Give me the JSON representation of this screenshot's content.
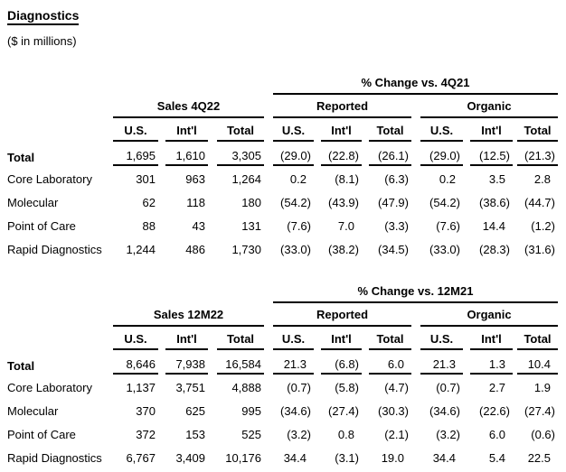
{
  "page": {
    "title": "Diagnostics",
    "subtitle": "($ in millions)"
  },
  "tables": [
    {
      "sales_header": "Sales 4Q22",
      "change_header": "% Change vs. 4Q21",
      "reported_header": "Reported",
      "organic_header": "Organic",
      "col_headers": [
        "U.S.",
        "Int'l",
        "Total",
        "U.S.",
        "Int'l",
        "Total",
        "U.S.",
        "Int'l",
        "Total"
      ],
      "rows": [
        {
          "label": "Total",
          "values": [
            "1,695",
            "1,610",
            "3,305",
            "(29.0)",
            "(22.8)",
            "(26.1)",
            "(29.0)",
            "(12.5)",
            "(21.3)"
          ]
        },
        {
          "label": "Core Laboratory",
          "values": [
            "301",
            "963",
            "1,264",
            "0.2",
            "(8.1)",
            "(6.3)",
            "0.2",
            "3.5",
            "2.8"
          ]
        },
        {
          "label": "Molecular",
          "values": [
            "62",
            "118",
            "180",
            "(54.2)",
            "(43.9)",
            "(47.9)",
            "(54.2)",
            "(38.6)",
            "(44.7)"
          ]
        },
        {
          "label": "Point of Care",
          "values": [
            "88",
            "43",
            "131",
            "(7.6)",
            "7.0",
            "(3.3)",
            "(7.6)",
            "14.4",
            "(1.2)"
          ]
        },
        {
          "label": "Rapid Diagnostics",
          "values": [
            "1,244",
            "486",
            "1,730",
            "(33.0)",
            "(38.2)",
            "(34.5)",
            "(33.0)",
            "(28.3)",
            "(31.6)"
          ]
        }
      ]
    },
    {
      "sales_header": "Sales 12M22",
      "change_header": "% Change vs. 12M21",
      "reported_header": "Reported",
      "organic_header": "Organic",
      "col_headers": [
        "U.S.",
        "Int'l",
        "Total",
        "U.S.",
        "Int'l",
        "Total",
        "U.S.",
        "Int'l",
        "Total"
      ],
      "rows": [
        {
          "label": "Total",
          "values": [
            "8,646",
            "7,938",
            "16,584",
            "21.3",
            "(6.8)",
            "6.0",
            "21.3",
            "1.3",
            "10.4"
          ]
        },
        {
          "label": "Core Laboratory",
          "values": [
            "1,137",
            "3,751",
            "4,888",
            "(0.7)",
            "(5.8)",
            "(4.7)",
            "(0.7)",
            "2.7",
            "1.9"
          ]
        },
        {
          "label": "Molecular",
          "values": [
            "370",
            "625",
            "995",
            "(34.6)",
            "(27.4)",
            "(30.3)",
            "(34.6)",
            "(22.6)",
            "(27.4)"
          ]
        },
        {
          "label": "Point of Care",
          "values": [
            "372",
            "153",
            "525",
            "(3.2)",
            "0.8",
            "(2.1)",
            "(3.2)",
            "6.0",
            "(0.6)"
          ]
        },
        {
          "label": "Rapid Diagnostics",
          "values": [
            "6,767",
            "3,409",
            "10,176",
            "34.4",
            "(3.1)",
            "19.0",
            "34.4",
            "5.4",
            "22.5"
          ]
        }
      ]
    }
  ]
}
